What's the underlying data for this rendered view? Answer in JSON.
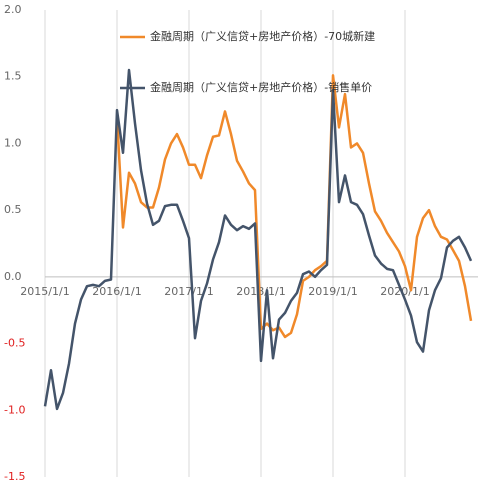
{
  "chart_data": {
    "type": "line",
    "categories": [
      "2015/1/1",
      null,
      null,
      null,
      null,
      null,
      null,
      null,
      null,
      null,
      null,
      null,
      "2016/1/1",
      null,
      null,
      null,
      null,
      null,
      null,
      null,
      null,
      null,
      null,
      null,
      "2017/1/1",
      null,
      null,
      null,
      null,
      null,
      null,
      null,
      null,
      null,
      null,
      null,
      "2018/1/1",
      null,
      null,
      null,
      null,
      null,
      null,
      null,
      null,
      null,
      null,
      null,
      "2019/1/1",
      null,
      null,
      null,
      null,
      null,
      null,
      null,
      null,
      null,
      null,
      null,
      "2020/1/1",
      null,
      null,
      null,
      null,
      null,
      null,
      null,
      null,
      null,
      null,
      null
    ],
    "series": [
      {
        "name": "金融周期（广义信贷+房地产价格）-70城新建",
        "color": "#f0892a",
        "values": [
          null,
          null,
          null,
          null,
          null,
          null,
          null,
          null,
          null,
          null,
          null,
          null,
          1.2,
          0.37,
          0.78,
          0.7,
          0.56,
          0.52,
          0.52,
          0.67,
          0.88,
          1.0,
          1.07,
          0.97,
          0.84,
          0.84,
          0.74,
          0.91,
          1.05,
          1.06,
          1.24,
          1.07,
          0.87,
          0.79,
          0.7,
          0.65,
          -0.39,
          -0.35,
          -0.4,
          -0.38,
          -0.45,
          -0.42,
          -0.28,
          -0.03,
          0.0,
          0.05,
          0.08,
          0.12,
          1.51,
          1.12,
          1.37,
          0.97,
          1.0,
          0.93,
          0.7,
          0.49,
          0.42,
          0.33,
          0.26,
          0.19,
          0.08,
          -0.1,
          0.3,
          0.44,
          0.5,
          0.38,
          0.3,
          0.28,
          0.2,
          0.12,
          -0.07,
          -0.33
        ]
      },
      {
        "name": "金融周期（广义信贷+房地产价格）-销售单价",
        "color": "#44546a",
        "values": [
          -0.97,
          -0.7,
          -0.99,
          -0.87,
          -0.65,
          -0.35,
          -0.17,
          -0.07,
          -0.06,
          -0.07,
          -0.03,
          -0.02,
          1.25,
          0.93,
          1.55,
          1.15,
          0.8,
          0.55,
          0.39,
          0.42,
          0.53,
          0.54,
          0.54,
          0.42,
          0.29,
          -0.46,
          -0.18,
          -0.05,
          0.13,
          0.26,
          0.46,
          0.39,
          0.35,
          0.38,
          0.36,
          0.4,
          -0.63,
          -0.1,
          -0.61,
          -0.32,
          -0.27,
          -0.18,
          -0.12,
          0.02,
          0.04,
          0.0,
          0.05,
          0.09,
          1.4,
          0.56,
          0.76,
          0.56,
          0.54,
          0.47,
          0.31,
          0.16,
          0.1,
          0.06,
          0.05,
          -0.06,
          -0.17,
          -0.29,
          -0.49,
          -0.56,
          -0.25,
          -0.1,
          -0.01,
          0.22,
          0.27,
          0.3,
          0.22,
          0.12
        ]
      }
    ],
    "ylim": [
      -1.5,
      2.0
    ],
    "yticks": [
      {
        "value": -1.5,
        "label": "-1.5"
      },
      {
        "value": -1.0,
        "label": "-1.0"
      },
      {
        "value": -0.5,
        "label": "-0.5"
      },
      {
        "value": 0,
        "label": "0.0"
      },
      {
        "value": 0.5,
        "label": "0.5"
      },
      {
        "value": 1.0,
        "label": "1.0"
      },
      {
        "value": 1.5,
        "label": "1.5"
      },
      {
        "value": 2.0,
        "label": "2.0"
      }
    ],
    "negative_tick_color": "#e02020",
    "vertical_grid": true
  }
}
